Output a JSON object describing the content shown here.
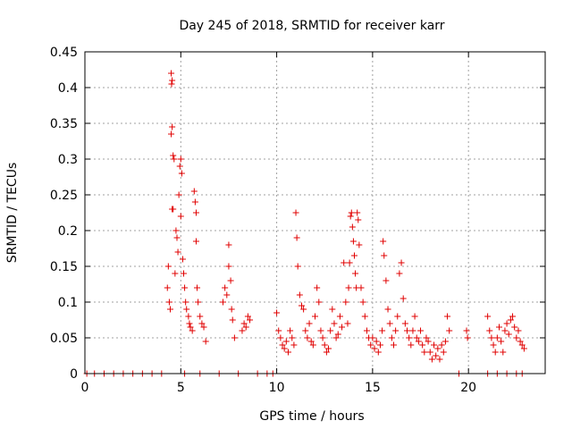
{
  "chart_data": {
    "type": "scatter",
    "title": "Day 245 of 2018, SRMTID for receiver karr",
    "xlabel": "GPS time / hours",
    "ylabel": "SRMTID / TECUs",
    "xlim": [
      0,
      24
    ],
    "ylim": [
      0,
      0.45
    ],
    "x_ticks": [
      0,
      5,
      10,
      15,
      20
    ],
    "y_ticks": [
      0,
      0.05,
      0.1,
      0.15,
      0.2,
      0.25,
      0.3,
      0.35,
      0.4,
      0.45
    ],
    "y_tick_labels": [
      "0",
      "0.05",
      "0.1",
      "0.15",
      "0.2",
      "0.25",
      "0.3",
      "0.35",
      "0.4",
      "0.45"
    ],
    "grid": true,
    "marker": "+",
    "series_color": "#e00000",
    "series": [
      {
        "name": "SRMTID",
        "points": [
          [
            0.1,
            0
          ],
          [
            0.5,
            0
          ],
          [
            1.0,
            0
          ],
          [
            1.5,
            0
          ],
          [
            2.0,
            0
          ],
          [
            2.5,
            0
          ],
          [
            3.0,
            0
          ],
          [
            3.5,
            0
          ],
          [
            4.0,
            0
          ],
          [
            4.3,
            0.12
          ],
          [
            4.35,
            0.15
          ],
          [
            4.4,
            0.1
          ],
          [
            4.45,
            0.09
          ],
          [
            4.5,
            0.42
          ],
          [
            4.52,
            0.405
          ],
          [
            4.55,
            0.41
          ],
          [
            4.5,
            0.335
          ],
          [
            4.55,
            0.345
          ],
          [
            4.6,
            0.305
          ],
          [
            4.65,
            0.3
          ],
          [
            4.55,
            0.23
          ],
          [
            4.6,
            0.23
          ],
          [
            4.7,
            0.14
          ],
          [
            4.75,
            0.2
          ],
          [
            4.8,
            0.19
          ],
          [
            4.85,
            0.17
          ],
          [
            4.9,
            0.25
          ],
          [
            4.95,
            0.29
          ],
          [
            5.0,
            0.3
          ],
          [
            5.05,
            0.28
          ],
          [
            5.0,
            0.22
          ],
          [
            5.1,
            0.16
          ],
          [
            5.15,
            0.14
          ],
          [
            5.2,
            0.12
          ],
          [
            5.25,
            0.1
          ],
          [
            5.3,
            0.09
          ],
          [
            5.4,
            0.08
          ],
          [
            5.45,
            0.07
          ],
          [
            5.5,
            0.065
          ],
          [
            5.6,
            0.06
          ],
          [
            5.7,
            0.255
          ],
          [
            5.75,
            0.24
          ],
          [
            5.8,
            0.225
          ],
          [
            5.8,
            0.185
          ],
          [
            5.85,
            0.12
          ],
          [
            5.9,
            0.1
          ],
          [
            6.0,
            0.08
          ],
          [
            6.1,
            0.07
          ],
          [
            6.2,
            0.065
          ],
          [
            6.3,
            0.045
          ],
          [
            5.2,
            0
          ],
          [
            6.0,
            0
          ],
          [
            7.0,
            0
          ],
          [
            7.2,
            0.1
          ],
          [
            7.3,
            0.12
          ],
          [
            7.4,
            0.11
          ],
          [
            7.5,
            0.15
          ],
          [
            7.5,
            0.18
          ],
          [
            7.6,
            0.13
          ],
          [
            7.65,
            0.09
          ],
          [
            7.7,
            0.075
          ],
          [
            7.8,
            0.05
          ],
          [
            8.0,
            0
          ],
          [
            8.2,
            0.06
          ],
          [
            8.3,
            0.07
          ],
          [
            8.4,
            0.065
          ],
          [
            8.5,
            0.08
          ],
          [
            8.6,
            0.075
          ],
          [
            9.0,
            0
          ],
          [
            9.5,
            0
          ],
          [
            9.8,
            0
          ],
          [
            10.0,
            0.085
          ],
          [
            10.1,
            0.06
          ],
          [
            10.2,
            0.05
          ],
          [
            10.3,
            0.04
          ],
          [
            10.4,
            0.035
          ],
          [
            10.5,
            0.045
          ],
          [
            10.6,
            0.03
          ],
          [
            10.7,
            0.06
          ],
          [
            10.8,
            0.05
          ],
          [
            10.9,
            0.04
          ],
          [
            11.0,
            0.225
          ],
          [
            11.05,
            0.19
          ],
          [
            11.1,
            0.15
          ],
          [
            11.2,
            0.11
          ],
          [
            11.3,
            0.095
          ],
          [
            11.4,
            0.09
          ],
          [
            11.5,
            0.06
          ],
          [
            11.6,
            0.05
          ],
          [
            11.7,
            0.07
          ],
          [
            11.8,
            0.045
          ],
          [
            11.9,
            0.04
          ],
          [
            12.0,
            0.08
          ],
          [
            12.1,
            0.12
          ],
          [
            12.2,
            0.1
          ],
          [
            12.3,
            0.06
          ],
          [
            12.4,
            0.05
          ],
          [
            12.5,
            0.04
          ],
          [
            12.6,
            0.03
          ],
          [
            12.7,
            0.035
          ],
          [
            12.8,
            0.06
          ],
          [
            12.9,
            0.09
          ],
          [
            13.0,
            0.07
          ],
          [
            13.1,
            0.05
          ],
          [
            13.2,
            0.055
          ],
          [
            13.3,
            0.08
          ],
          [
            13.4,
            0.065
          ],
          [
            13.5,
            0.155
          ],
          [
            13.6,
            0.1
          ],
          [
            13.7,
            0.07
          ],
          [
            13.75,
            0.12
          ],
          [
            13.8,
            0.155
          ],
          [
            13.85,
            0.22
          ],
          [
            13.9,
            0.225
          ],
          [
            13.95,
            0.205
          ],
          [
            14.0,
            0.185
          ],
          [
            14.05,
            0.165
          ],
          [
            14.1,
            0.14
          ],
          [
            14.15,
            0.12
          ],
          [
            14.2,
            0.225
          ],
          [
            14.25,
            0.215
          ],
          [
            14.3,
            0.18
          ],
          [
            14.4,
            0.12
          ],
          [
            14.5,
            0.1
          ],
          [
            14.6,
            0.08
          ],
          [
            14.7,
            0.06
          ],
          [
            14.8,
            0.05
          ],
          [
            14.9,
            0.04
          ],
          [
            15.0,
            0.05
          ],
          [
            15.1,
            0.035
          ],
          [
            15.2,
            0.045
          ],
          [
            15.3,
            0.03
          ],
          [
            15.4,
            0.04
          ],
          [
            15.5,
            0.06
          ],
          [
            15.55,
            0.185
          ],
          [
            15.6,
            0.165
          ],
          [
            15.7,
            0.13
          ],
          [
            15.8,
            0.09
          ],
          [
            15.9,
            0.07
          ],
          [
            16.0,
            0.05
          ],
          [
            16.1,
            0.04
          ],
          [
            16.2,
            0.06
          ],
          [
            16.3,
            0.08
          ],
          [
            16.4,
            0.14
          ],
          [
            16.5,
            0.155
          ],
          [
            16.6,
            0.105
          ],
          [
            16.7,
            0.07
          ],
          [
            16.8,
            0.06
          ],
          [
            16.9,
            0.05
          ],
          [
            17.0,
            0.04
          ],
          [
            17.1,
            0.06
          ],
          [
            17.2,
            0.08
          ],
          [
            17.3,
            0.05
          ],
          [
            17.4,
            0.045
          ],
          [
            17.5,
            0.06
          ],
          [
            17.6,
            0.04
          ],
          [
            17.7,
            0.03
          ],
          [
            17.8,
            0.05
          ],
          [
            17.9,
            0.045
          ],
          [
            18.0,
            0.03
          ],
          [
            18.1,
            0.02
          ],
          [
            18.2,
            0.04
          ],
          [
            18.3,
            0.025
          ],
          [
            18.4,
            0.035
          ],
          [
            18.5,
            0.02
          ],
          [
            18.6,
            0.04
          ],
          [
            18.7,
            0.03
          ],
          [
            18.8,
            0.045
          ],
          [
            18.9,
            0.08
          ],
          [
            19.0,
            0.06
          ],
          [
            19.5,
            0
          ],
          [
            19.9,
            0.06
          ],
          [
            19.95,
            0.05
          ],
          [
            21.0,
            0.08
          ],
          [
            21.1,
            0.06
          ],
          [
            21.2,
            0.05
          ],
          [
            21.3,
            0.04
          ],
          [
            21.4,
            0.03
          ],
          [
            21.5,
            0.05
          ],
          [
            21.6,
            0.065
          ],
          [
            21.7,
            0.045
          ],
          [
            21.8,
            0.03
          ],
          [
            21.9,
            0.06
          ],
          [
            22.0,
            0.07
          ],
          [
            22.1,
            0.055
          ],
          [
            22.2,
            0.075
          ],
          [
            22.3,
            0.08
          ],
          [
            22.4,
            0.065
          ],
          [
            22.5,
            0.05
          ],
          [
            22.6,
            0.06
          ],
          [
            22.7,
            0.045
          ],
          [
            22.8,
            0.04
          ],
          [
            22.9,
            0.035
          ],
          [
            21.0,
            0
          ],
          [
            21.5,
            0
          ],
          [
            22.0,
            0
          ],
          [
            22.5,
            0
          ],
          [
            22.8,
            0
          ]
        ]
      }
    ]
  }
}
